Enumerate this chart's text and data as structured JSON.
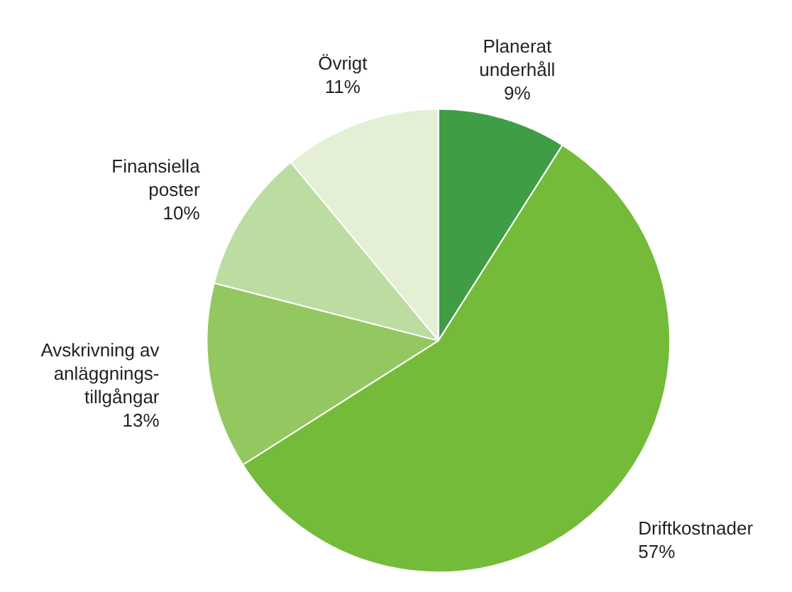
{
  "chart_data": {
    "type": "pie",
    "categories": [
      "Planerat\nunderhåll",
      "Driftkostnader",
      "Avskrivning av\nanläggnings-\ntillgångar",
      "Finansiella\nposter",
      "Övrigt"
    ],
    "values": [
      9,
      57,
      13,
      10,
      11
    ],
    "colors": [
      "#3f9d46",
      "#74bb3a",
      "#93c860",
      "#bddca2",
      "#e3f0d6"
    ],
    "value_labels": [
      "9%",
      "57%",
      "13%",
      "10%",
      "11%"
    ]
  }
}
